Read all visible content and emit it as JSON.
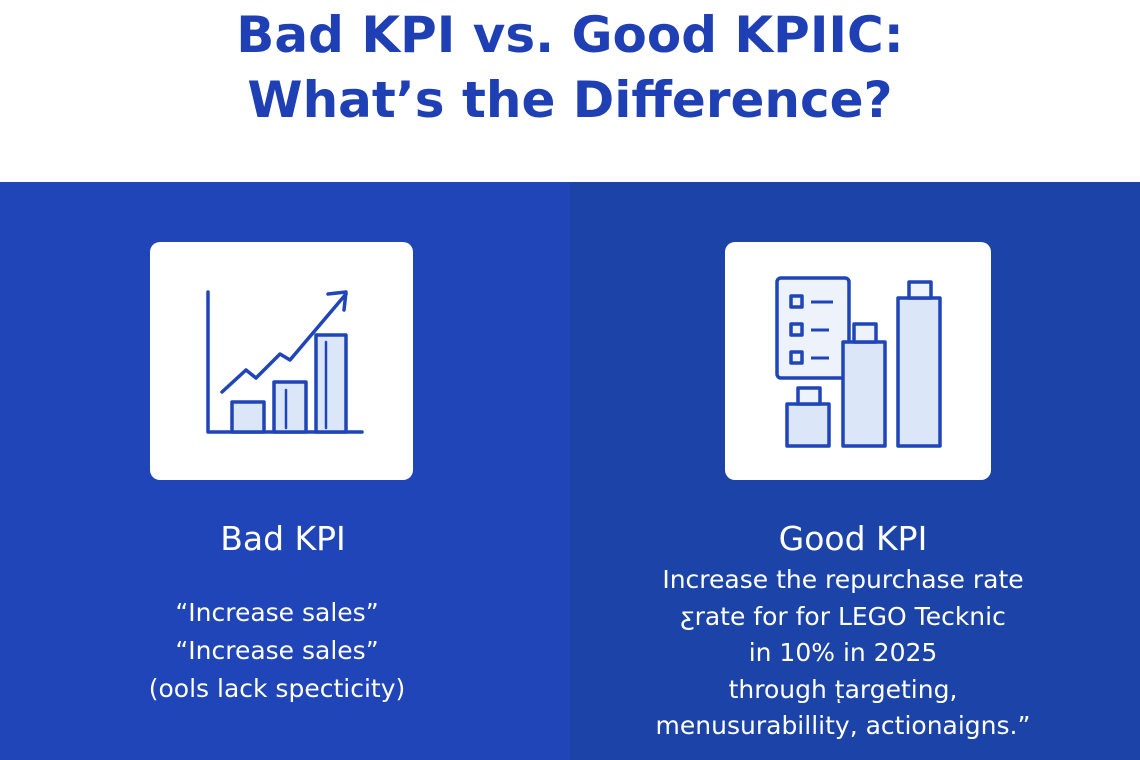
{
  "title": {
    "line1": "Bad KPI vs. Good KPIIC:",
    "line2": "What’s the Difference?"
  },
  "colors": {
    "title": "#1f3fb5",
    "left_panel": "#1f45b8",
    "right_panel": "#1c44a8",
    "icon_stroke": "#1f45b8",
    "icon_fill": "#dbe6f8"
  },
  "bad": {
    "icon": "rising-bar-chart-icon",
    "heading": "Bad KPI",
    "lines": [
      "“Increase sales”",
      "“Increase sales”",
      "(ools lack specticity)"
    ]
  },
  "good": {
    "icon": "checklist-bar-chart-icon",
    "heading": "Good KPI",
    "lines": [
      "Increase the repurchase rate",
      "ƹrate for for LEGO Tecknic",
      "in 10% in 2025",
      "through tͅargeting,",
      "menusurabillity, actionaigns.”"
    ]
  }
}
